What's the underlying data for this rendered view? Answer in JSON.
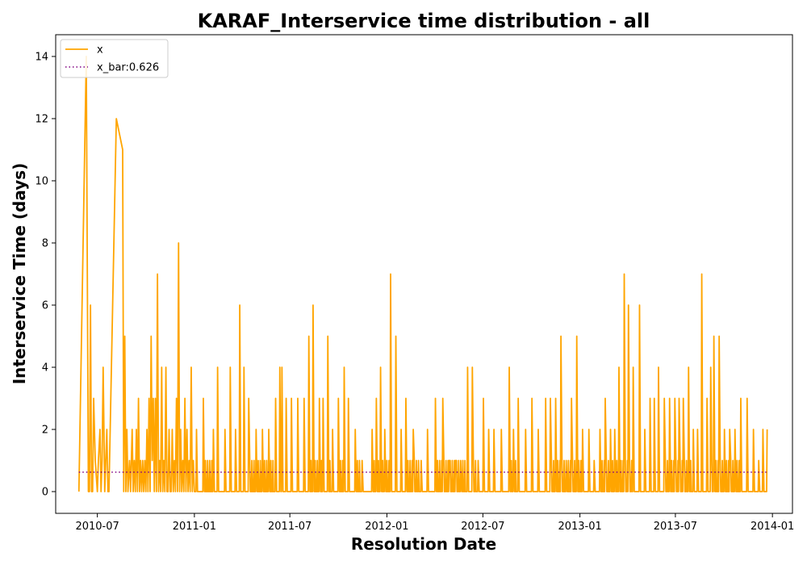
{
  "chart_data": {
    "type": "line",
    "title": "KARAF_Interservice time distribution - all",
    "xlabel": "Resolution Date",
    "ylabel": "Interservice Time (days)",
    "xlim": [
      "2010-04-13",
      "2014-02-08"
    ],
    "ylim": [
      -0.7,
      14.7
    ],
    "x_ticks": [
      "2010-07",
      "2011-01",
      "2011-07",
      "2012-01",
      "2012-07",
      "2013-01",
      "2013-07",
      "2014-01"
    ],
    "y_ticks": [
      0,
      2,
      4,
      6,
      8,
      10,
      12,
      14
    ],
    "grid": false,
    "legend": "top-left",
    "x_start": "2010-05-27",
    "x_end": "2013-12-22",
    "series": [
      {
        "name": "x",
        "color": "#ffa500",
        "style": "solid",
        "x": [
          "2010-05-27",
          "2010-06-10",
          "2010-06-14",
          "2010-06-16",
          "2010-06-18",
          "2010-06-20",
          "2010-06-22",
          "2010-06-24",
          "2010-06-27",
          "2010-07-01",
          "2010-07-03",
          "2010-07-06",
          "2010-07-08",
          "2010-07-10",
          "2010-07-12",
          "2010-07-15",
          "2010-07-19",
          "2010-07-21",
          "2010-07-23",
          "2010-08-06",
          "2010-08-18",
          "2010-08-20",
          "2010-08-22",
          "2010-08-24",
          "2010-08-26",
          "2010-08-28",
          "2010-08-31",
          "2010-09-02",
          "2010-09-05",
          "2010-09-07",
          "2010-09-09",
          "2010-09-11",
          "2010-09-13",
          "2010-09-15",
          "2010-09-17",
          "2010-09-19",
          "2010-09-21",
          "2010-09-23",
          "2010-09-25",
          "2010-09-27",
          "2010-09-29",
          "2010-10-01",
          "2010-10-03",
          "2010-10-05",
          "2010-10-07",
          "2010-10-09",
          "2010-10-11",
          "2010-10-13",
          "2010-10-15",
          "2010-10-17",
          "2010-10-19",
          "2010-10-21",
          "2010-10-23",
          "2010-10-25",
          "2010-10-27",
          "2010-10-29",
          "2010-10-31",
          "2010-11-02",
          "2010-11-04",
          "2010-11-06",
          "2010-11-08",
          "2010-11-10",
          "2010-11-12",
          "2010-11-14",
          "2010-11-16",
          "2010-11-18",
          "2010-11-20",
          "2010-11-22",
          "2010-11-24",
          "2010-11-26",
          "2010-11-28",
          "2010-11-30",
          "2010-12-02",
          "2010-12-04",
          "2010-12-06",
          "2010-12-08",
          "2010-12-10",
          "2010-12-12",
          "2010-12-14",
          "2010-12-16",
          "2010-12-18",
          "2010-12-20",
          "2010-12-22",
          "2010-12-24",
          "2010-12-26",
          "2010-12-28",
          "2010-12-30"
        ],
        "y": [
          0,
          14,
          0,
          0,
          6,
          0,
          0,
          3,
          1,
          0,
          1,
          2,
          0,
          1,
          4,
          0,
          2,
          0,
          0,
          12,
          11,
          0,
          5,
          0,
          2,
          0,
          1,
          0,
          2,
          0,
          1,
          0,
          2,
          0,
          3,
          0,
          1,
          0,
          1,
          0,
          1,
          0,
          2,
          0,
          3,
          0,
          5,
          1,
          3,
          0,
          3,
          0,
          7,
          0,
          1,
          0,
          4,
          0,
          1,
          0,
          4,
          0,
          0,
          2,
          0,
          0,
          2,
          0,
          1,
          0,
          3,
          0,
          8,
          0,
          2,
          0,
          1,
          0,
          3,
          0,
          2,
          0,
          1,
          0,
          4,
          0,
          1
        ]
      },
      {
        "name": "x_bar:0.626",
        "color": "#800080",
        "style": "dotted",
        "value": 0.626
      }
    ],
    "peaks": [
      {
        "x": "2011-01-05",
        "y": 2
      },
      {
        "x": "2011-01-18",
        "y": 3
      },
      {
        "x": "2011-02-06",
        "y": 2
      },
      {
        "x": "2011-02-14",
        "y": 4
      },
      {
        "x": "2011-02-28",
        "y": 2
      },
      {
        "x": "2011-03-10",
        "y": 4
      },
      {
        "x": "2011-03-20",
        "y": 2
      },
      {
        "x": "2011-03-28",
        "y": 6
      },
      {
        "x": "2011-04-05",
        "y": 4
      },
      {
        "x": "2011-04-14",
        "y": 3
      },
      {
        "x": "2011-04-28",
        "y": 2
      },
      {
        "x": "2011-05-10",
        "y": 2
      },
      {
        "x": "2011-05-22",
        "y": 2
      },
      {
        "x": "2011-06-04",
        "y": 3
      },
      {
        "x": "2011-06-12",
        "y": 4
      },
      {
        "x": "2011-06-16",
        "y": 4
      },
      {
        "x": "2011-06-24",
        "y": 3
      },
      {
        "x": "2011-07-04",
        "y": 3
      },
      {
        "x": "2011-07-16",
        "y": 3
      },
      {
        "x": "2011-07-28",
        "y": 3
      },
      {
        "x": "2011-08-06",
        "y": 5
      },
      {
        "x": "2011-08-14",
        "y": 6
      },
      {
        "x": "2011-08-26",
        "y": 3
      },
      {
        "x": "2011-09-02",
        "y": 3
      },
      {
        "x": "2011-09-11",
        "y": 5
      },
      {
        "x": "2011-09-20",
        "y": 2
      },
      {
        "x": "2011-10-01",
        "y": 3
      },
      {
        "x": "2011-10-12",
        "y": 4
      },
      {
        "x": "2011-10-20",
        "y": 3
      },
      {
        "x": "2011-11-02",
        "y": 2
      },
      {
        "x": "2011-11-15",
        "y": 1
      },
      {
        "x": "2011-12-04",
        "y": 2
      },
      {
        "x": "2011-12-12",
        "y": 3
      },
      {
        "x": "2011-12-20",
        "y": 4
      },
      {
        "x": "2011-12-28",
        "y": 2
      },
      {
        "x": "2012-01-08",
        "y": 7
      },
      {
        "x": "2012-01-18",
        "y": 5
      },
      {
        "x": "2012-01-28",
        "y": 2
      },
      {
        "x": "2012-02-06",
        "y": 3
      },
      {
        "x": "2012-02-20",
        "y": 2
      },
      {
        "x": "2012-03-06",
        "y": 1
      },
      {
        "x": "2012-03-18",
        "y": 2
      },
      {
        "x": "2012-04-02",
        "y": 3
      },
      {
        "x": "2012-04-16",
        "y": 3
      },
      {
        "x": "2012-04-28",
        "y": 1
      },
      {
        "x": "2012-05-10",
        "y": 1
      },
      {
        "x": "2012-05-20",
        "y": 1
      },
      {
        "x": "2012-06-02",
        "y": 4
      },
      {
        "x": "2012-06-11",
        "y": 4
      },
      {
        "x": "2012-06-22",
        "y": 1
      },
      {
        "x": "2012-07-02",
        "y": 3
      },
      {
        "x": "2012-07-12",
        "y": 2
      },
      {
        "x": "2012-07-22",
        "y": 2
      },
      {
        "x": "2012-08-05",
        "y": 2
      },
      {
        "x": "2012-08-20",
        "y": 4
      },
      {
        "x": "2012-08-28",
        "y": 2
      },
      {
        "x": "2012-09-06",
        "y": 3
      },
      {
        "x": "2012-09-20",
        "y": 2
      },
      {
        "x": "2012-10-02",
        "y": 3
      },
      {
        "x": "2012-10-14",
        "y": 2
      },
      {
        "x": "2012-10-28",
        "y": 3
      },
      {
        "x": "2012-11-06",
        "y": 3
      },
      {
        "x": "2012-11-16",
        "y": 3
      },
      {
        "x": "2012-11-26",
        "y": 5
      },
      {
        "x": "2012-12-06",
        "y": 1
      },
      {
        "x": "2012-12-16",
        "y": 3
      },
      {
        "x": "2012-12-26",
        "y": 5
      },
      {
        "x": "2013-01-06",
        "y": 2
      },
      {
        "x": "2013-01-18",
        "y": 2
      },
      {
        "x": "2013-01-28",
        "y": 1
      },
      {
        "x": "2013-02-08",
        "y": 2
      },
      {
        "x": "2013-02-18",
        "y": 3
      },
      {
        "x": "2013-02-28",
        "y": 2
      },
      {
        "x": "2013-03-08",
        "y": 2
      },
      {
        "x": "2013-03-16",
        "y": 4
      },
      {
        "x": "2013-03-26",
        "y": 7
      },
      {
        "x": "2013-04-03",
        "y": 6
      },
      {
        "x": "2013-04-12",
        "y": 4
      },
      {
        "x": "2013-04-24",
        "y": 6
      },
      {
        "x": "2013-05-04",
        "y": 2
      },
      {
        "x": "2013-05-14",
        "y": 3
      },
      {
        "x": "2013-05-22",
        "y": 3
      },
      {
        "x": "2013-05-30",
        "y": 4
      },
      {
        "x": "2013-06-10",
        "y": 3
      },
      {
        "x": "2013-06-20",
        "y": 3
      },
      {
        "x": "2013-06-30",
        "y": 3
      },
      {
        "x": "2013-07-08",
        "y": 3
      },
      {
        "x": "2013-07-16",
        "y": 3
      },
      {
        "x": "2013-07-26",
        "y": 4
      },
      {
        "x": "2013-08-04",
        "y": 2
      },
      {
        "x": "2013-08-12",
        "y": 2
      },
      {
        "x": "2013-08-20",
        "y": 7
      },
      {
        "x": "2013-08-30",
        "y": 3
      },
      {
        "x": "2013-09-06",
        "y": 4
      },
      {
        "x": "2013-09-12",
        "y": 5
      },
      {
        "x": "2013-09-22",
        "y": 5
      },
      {
        "x": "2013-10-02",
        "y": 2
      },
      {
        "x": "2013-10-12",
        "y": 2
      },
      {
        "x": "2013-10-22",
        "y": 2
      },
      {
        "x": "2013-11-02",
        "y": 3
      },
      {
        "x": "2013-11-14",
        "y": 3
      },
      {
        "x": "2013-11-26",
        "y": 2
      },
      {
        "x": "2013-12-06",
        "y": 1
      },
      {
        "x": "2013-12-14",
        "y": 2
      },
      {
        "x": "2013-12-22",
        "y": 2
      }
    ]
  }
}
